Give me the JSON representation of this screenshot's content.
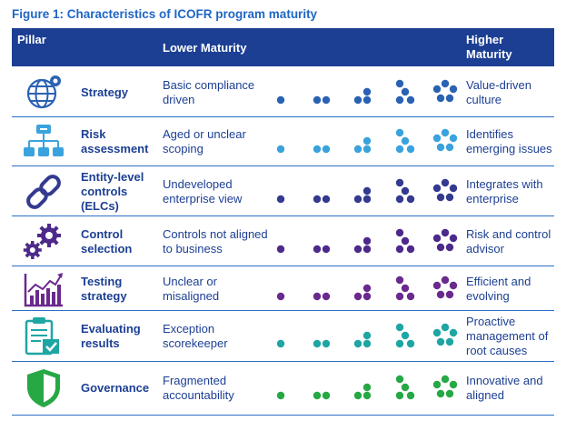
{
  "title": "Figure 1: Characteristics of ICOFR program maturity",
  "header": {
    "pillar": "Pillar",
    "lower": "Lower Maturity",
    "higher": "Higher Maturity"
  },
  "rows": [
    {
      "pillar": "Strategy",
      "lower": "Basic compliance driven",
      "higher": "Value-driven culture",
      "color": "#2a62b3",
      "icon": "globe-icon"
    },
    {
      "pillar": "Risk assessment",
      "lower": "Aged or unclear scoping",
      "higher": "Identifies emerging issues",
      "color": "#3aa3dd",
      "icon": "org-chart-icon"
    },
    {
      "pillar": "Entity-level controls (ELCs)",
      "lower": "Undeveloped enterprise view",
      "higher": "Integrates with enterprise",
      "color": "#333a8f",
      "icon": "chain-link-icon"
    },
    {
      "pillar": "Control selection",
      "lower": "Controls not aligned to business",
      "higher": "Risk and control advisor",
      "color": "#4d2a8a",
      "icon": "gears-icon"
    },
    {
      "pillar": "Testing strategy",
      "lower": "Unclear or misaligned",
      "higher": "Efficient and evolving",
      "color": "#6a2a8d",
      "icon": "bar-chart-icon"
    },
    {
      "pillar": "Evaluating results",
      "lower": "Exception scorekeeper",
      "higher": "Proactive management of root causes",
      "color": "#1ea6a4",
      "icon": "clipboard-check-icon"
    },
    {
      "pillar": "Governance",
      "lower": "Fragmented accountability",
      "higher": "Innovative and aligned",
      "color": "#26a844",
      "icon": "shield-icon"
    }
  ]
}
